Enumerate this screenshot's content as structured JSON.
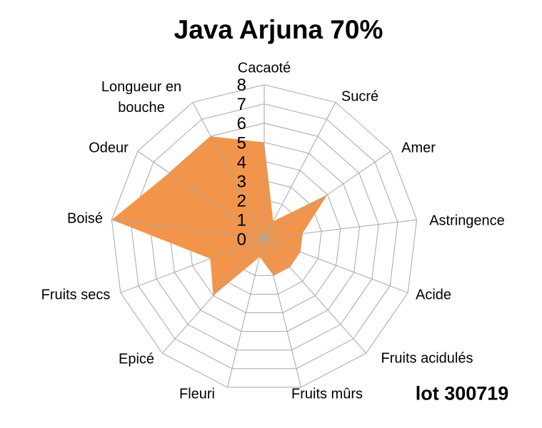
{
  "chart_data": {
    "type": "radar",
    "title": "Java Arjuna 70%",
    "annotation": "lot 300719",
    "categories": [
      "Cacaoté",
      "Sucré",
      "Amer",
      "Astringence",
      "Acide",
      "Fruits acidulés",
      "Fruits mûrs",
      "Fleuri",
      "Epicé",
      "Fruits secs",
      "Boisé",
      "Odeur",
      "Longueur en bouche"
    ],
    "series": [
      {
        "name": "Java Arjuna 70%",
        "values": [
          5,
          1,
          4,
          2,
          2,
          2,
          2,
          1,
          4,
          3,
          8,
          6,
          6
        ]
      }
    ],
    "scale": {
      "min": 0,
      "max": 8,
      "step": 1,
      "tick_labels": [
        "0",
        "1",
        "2",
        "3",
        "4",
        "5",
        "6",
        "7",
        "8"
      ]
    },
    "grid": true,
    "legend": "none",
    "colors": {
      "fill": "#F2954A",
      "grid": "#A6A6A6",
      "text": "#000000"
    }
  }
}
